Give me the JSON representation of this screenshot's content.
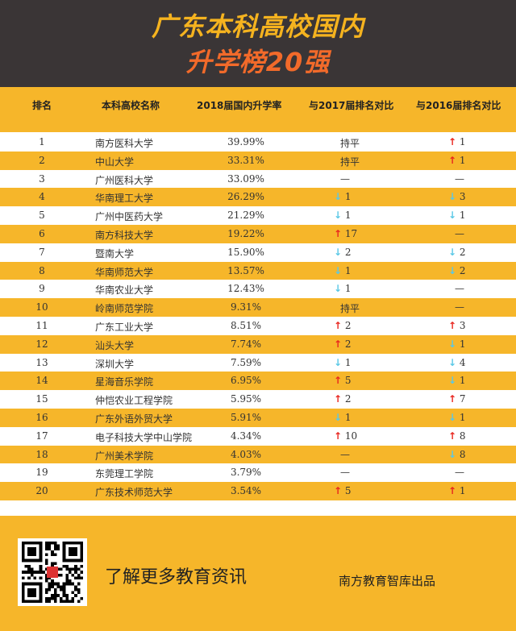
{
  "title": {
    "line1": "广东本科高校国内",
    "line2": "升学榜20强"
  },
  "headers": [
    "排名",
    "本科高校名称",
    "2018届国内升学率",
    "与2017届排名对比",
    "与2016届排名对比"
  ],
  "colors": {
    "dark": "#3a3536",
    "yellow": "#f6b62a",
    "up": "#e8261f",
    "down": "#5bc8e6"
  },
  "rows": [
    {
      "rank": "1",
      "name": "南方医科大学",
      "rate": "39.99%",
      "vs2017": {
        "dir": "",
        "value": "持平"
      },
      "vs2016": {
        "dir": "up",
        "value": "1"
      }
    },
    {
      "rank": "2",
      "name": "中山大学",
      "rate": "33.31%",
      "vs2017": {
        "dir": "",
        "value": "持平"
      },
      "vs2016": {
        "dir": "up",
        "value": "1"
      }
    },
    {
      "rank": "3",
      "name": "广州医科大学",
      "rate": "33.09%",
      "vs2017": {
        "dir": "",
        "value": "—"
      },
      "vs2016": {
        "dir": "",
        "value": "—"
      }
    },
    {
      "rank": "4",
      "name": "华南理工大学",
      "rate": "26.29%",
      "vs2017": {
        "dir": "down",
        "value": "1"
      },
      "vs2016": {
        "dir": "down",
        "value": "3"
      }
    },
    {
      "rank": "5",
      "name": "广州中医药大学",
      "rate": "21.29%",
      "vs2017": {
        "dir": "down",
        "value": "1"
      },
      "vs2016": {
        "dir": "down",
        "value": "1"
      }
    },
    {
      "rank": "6",
      "name": "南方科技大学",
      "rate": "19.22%",
      "vs2017": {
        "dir": "up",
        "value": "17"
      },
      "vs2016": {
        "dir": "",
        "value": "—"
      }
    },
    {
      "rank": "7",
      "name": "暨南大学",
      "rate": "15.90%",
      "vs2017": {
        "dir": "down",
        "value": "2"
      },
      "vs2016": {
        "dir": "down",
        "value": "2"
      }
    },
    {
      "rank": "8",
      "name": "华南师范大学",
      "rate": "13.57%",
      "vs2017": {
        "dir": "down",
        "value": "1"
      },
      "vs2016": {
        "dir": "down",
        "value": "2"
      }
    },
    {
      "rank": "9",
      "name": "华南农业大学",
      "rate": "12.43%",
      "vs2017": {
        "dir": "down",
        "value": "1"
      },
      "vs2016": {
        "dir": "",
        "value": "—"
      }
    },
    {
      "rank": "10",
      "name": "岭南师范学院",
      "rate": "9.31%",
      "vs2017": {
        "dir": "",
        "value": "持平"
      },
      "vs2016": {
        "dir": "",
        "value": "—"
      }
    },
    {
      "rank": "11",
      "name": "广东工业大学",
      "rate": "8.51%",
      "vs2017": {
        "dir": "up",
        "value": "2"
      },
      "vs2016": {
        "dir": "up",
        "value": "3"
      }
    },
    {
      "rank": "12",
      "name": "汕头大学",
      "rate": "7.74%",
      "vs2017": {
        "dir": "up",
        "value": "2"
      },
      "vs2016": {
        "dir": "down",
        "value": "1"
      }
    },
    {
      "rank": "13",
      "name": "深圳大学",
      "rate": "7.59%",
      "vs2017": {
        "dir": "down",
        "value": "1"
      },
      "vs2016": {
        "dir": "down",
        "value": "4"
      }
    },
    {
      "rank": "14",
      "name": "星海音乐学院",
      "rate": "6.95%",
      "vs2017": {
        "dir": "up",
        "value": "5"
      },
      "vs2016": {
        "dir": "down",
        "value": "1"
      }
    },
    {
      "rank": "15",
      "name": "仲恺农业工程学院",
      "rate": "5.95%",
      "vs2017": {
        "dir": "up",
        "value": "2"
      },
      "vs2016": {
        "dir": "up",
        "value": "7"
      }
    },
    {
      "rank": "16",
      "name": "广东外语外贸大学",
      "rate": "5.91%",
      "vs2017": {
        "dir": "down",
        "value": "1"
      },
      "vs2016": {
        "dir": "down",
        "value": "1"
      }
    },
    {
      "rank": "17",
      "name": "电子科技大学中山学院",
      "rate": "4.34%",
      "vs2017": {
        "dir": "up",
        "value": "10"
      },
      "vs2016": {
        "dir": "up",
        "value": "8"
      }
    },
    {
      "rank": "18",
      "name": "广州美术学院",
      "rate": "4.03%",
      "vs2017": {
        "dir": "",
        "value": "—"
      },
      "vs2016": {
        "dir": "down",
        "value": "8"
      }
    },
    {
      "rank": "19",
      "name": "东莞理工学院",
      "rate": "3.79%",
      "vs2017": {
        "dir": "",
        "value": "—"
      },
      "vs2016": {
        "dir": "",
        "value": "—"
      }
    },
    {
      "rank": "20",
      "name": "广东技术师范大学",
      "rate": "3.54%",
      "vs2017": {
        "dir": "up",
        "value": "5"
      },
      "vs2016": {
        "dir": "up",
        "value": "1"
      }
    }
  ],
  "footer": {
    "slogan": "了解更多教育资讯",
    "credit": "南方教育智库出品",
    "qr_icon": "qr-code-icon"
  }
}
